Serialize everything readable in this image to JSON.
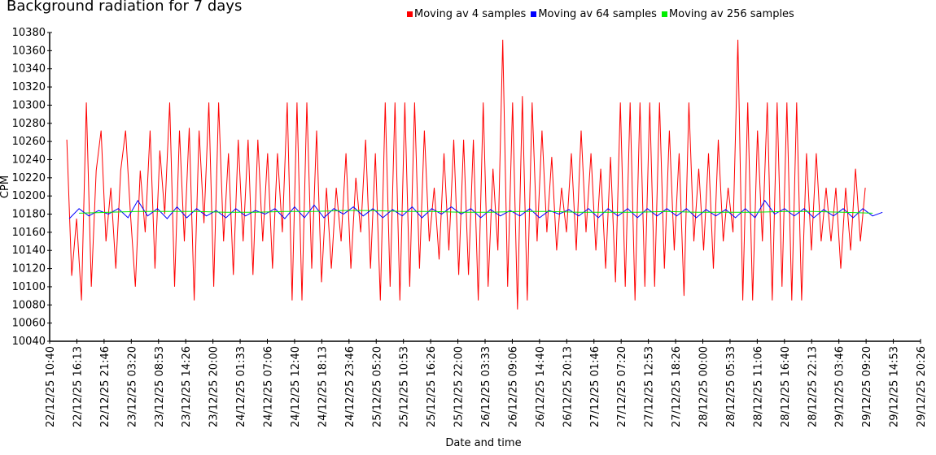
{
  "chart_data": {
    "type": "line",
    "title": "Background radiation for 7 days",
    "xlabel": "Date and time",
    "ylabel": "CPM",
    "ylim": [
      10040,
      10380
    ],
    "yticks": [
      10040,
      10060,
      10080,
      10100,
      10120,
      10140,
      10160,
      10180,
      10200,
      10220,
      10240,
      10260,
      10280,
      10300,
      10320,
      10340,
      10360,
      10380
    ],
    "x_unit": "hours since 22/12/25 10:40",
    "xlim": [
      0,
      177.78
    ],
    "xtick_labels": [
      "22/12/25 10:40",
      "22/12/25 16:13",
      "22/12/25 21:46",
      "23/12/25 03:20",
      "23/12/25 08:53",
      "23/12/25 14:26",
      "23/12/25 20:00",
      "24/12/25 01:33",
      "24/12/25 07:06",
      "24/12/25 12:40",
      "24/12/25 18:13",
      "24/12/25 23:46",
      "25/12/25 05:20",
      "25/12/25 10:53",
      "25/12/25 16:26",
      "25/12/25 22:00",
      "26/12/25 03:33",
      "26/12/25 09:06",
      "26/12/25 14:40",
      "26/12/25 20:13",
      "27/12/25 01:46",
      "27/12/25 07:20",
      "27/12/25 12:53",
      "27/12/25 18:26",
      "28/12/25 00:00",
      "28/12/25 05:33",
      "28/12/25 11:06",
      "28/12/25 16:40",
      "28/12/25 22:13",
      "29/12/25 03:46",
      "29/12/25 09:20",
      "29/12/25 14:53",
      "29/12/25 20:26"
    ],
    "legend_position": "top",
    "series": [
      {
        "name": "Moving av 4 samples",
        "color": "#ff0000",
        "x_start": 3.5,
        "x_step": 1.0,
        "values": [
          10262,
          10112,
          10175,
          10085,
          10303,
          10100,
          10228,
          10272,
          10150,
          10209,
          10120,
          10228,
          10272,
          10180,
          10100,
          10228,
          10160,
          10272,
          10120,
          10250,
          10180,
          10303,
          10100,
          10272,
          10150,
          10275,
          10085,
          10272,
          10170,
          10303,
          10100,
          10303,
          10150,
          10247,
          10113,
          10262,
          10150,
          10262,
          10113,
          10262,
          10150,
          10247,
          10120,
          10247,
          10160,
          10303,
          10085,
          10303,
          10085,
          10303,
          10120,
          10272,
          10105,
          10209,
          10120,
          10209,
          10150,
          10247,
          10120,
          10220,
          10160,
          10262,
          10120,
          10247,
          10085,
          10303,
          10100,
          10303,
          10085,
          10303,
          10100,
          10303,
          10120,
          10272,
          10150,
          10209,
          10130,
          10247,
          10140,
          10262,
          10113,
          10262,
          10113,
          10262,
          10085,
          10303,
          10100,
          10230,
          10140,
          10372,
          10100,
          10303,
          10075,
          10310,
          10085,
          10303,
          10150,
          10272,
          10160,
          10243,
          10140,
          10209,
          10160,
          10247,
          10140,
          10272,
          10160,
          10247,
          10140,
          10230,
          10120,
          10243,
          10105,
          10303,
          10100,
          10303,
          10085,
          10303,
          10100,
          10303,
          10100,
          10303,
          10120,
          10272,
          10140,
          10247,
          10090,
          10303,
          10150,
          10230,
          10140,
          10247,
          10120,
          10262,
          10150,
          10209,
          10160,
          10372,
          10085,
          10303,
          10085,
          10272,
          10150,
          10303,
          10085,
          10303,
          10100,
          10303,
          10085,
          10303,
          10085,
          10247,
          10140,
          10247,
          10150,
          10209,
          10150,
          10209,
          10120,
          10209,
          10140,
          10230,
          10150,
          10209
        ]
      },
      {
        "name": "Moving av 64 samples",
        "color": "#0000ff",
        "x_start": 4.0,
        "x_step": 2.0,
        "values": [
          10175,
          10186,
          10178,
          10184,
          10180,
          10186,
          10176,
          10195,
          10178,
          10186,
          10175,
          10188,
          10176,
          10186,
          10178,
          10184,
          10176,
          10186,
          10178,
          10184,
          10180,
          10186,
          10175,
          10188,
          10176,
          10190,
          10176,
          10186,
          10180,
          10188,
          10178,
          10186,
          10176,
          10185,
          10178,
          10188,
          10176,
          10186,
          10180,
          10188,
          10180,
          10186,
          10176,
          10185,
          10178,
          10184,
          10178,
          10186,
          10176,
          10184,
          10180,
          10185,
          10178,
          10186,
          10176,
          10186,
          10178,
          10186,
          10176,
          10186,
          10178,
          10186,
          10178,
          10186,
          10176,
          10185,
          10178,
          10185,
          10176,
          10186,
          10176,
          10195,
          10180,
          10186,
          10178,
          10186,
          10176,
          10185,
          10178,
          10186,
          10176,
          10186,
          10178,
          10182
        ]
      },
      {
        "name": "Moving av 256 samples",
        "color": "#00ee00",
        "x_start": 6.0,
        "x_step": 6.0,
        "values": [
          10181,
          10182,
          10183,
          10183,
          10183,
          10182,
          10182,
          10183,
          10183,
          10184,
          10184,
          10183,
          10183,
          10182,
          10182,
          10183,
          10183,
          10182,
          10182,
          10182,
          10183,
          10182,
          10182,
          10182,
          10183,
          10183,
          10182,
          10181
        ]
      }
    ]
  }
}
